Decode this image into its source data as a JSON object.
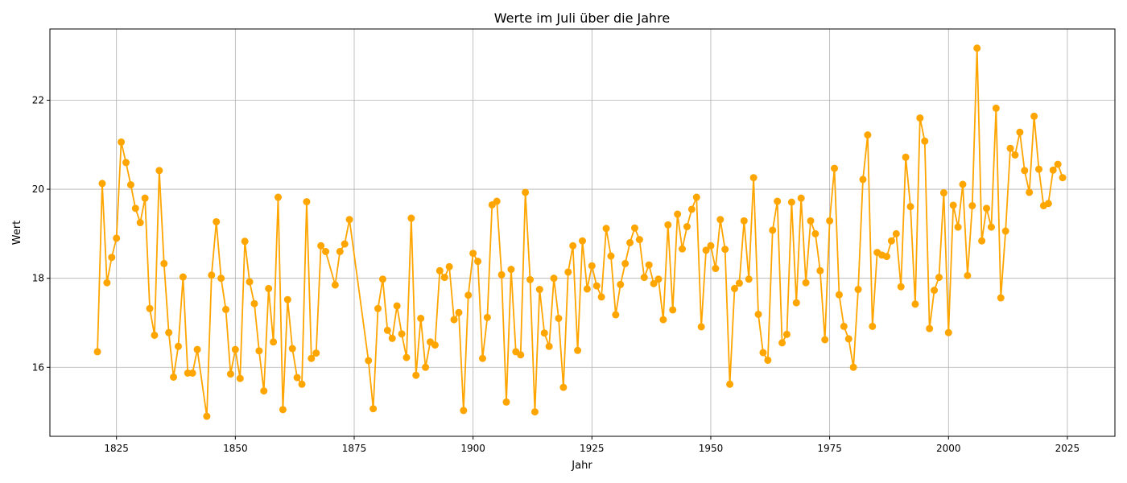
{
  "chart_data": {
    "type": "line",
    "title": "Werte im Juli über die Jahre",
    "xlabel": "Jahr",
    "ylabel": "Wert",
    "xlim": [
      1811,
      2035
    ],
    "ylim": [
      14.45,
      23.6
    ],
    "xticks": [
      1825,
      1850,
      1875,
      1900,
      1925,
      1950,
      1975,
      2000,
      2025
    ],
    "yticks": [
      16,
      18,
      20,
      22
    ],
    "grid": true,
    "color": "#FFA500",
    "series": [
      {
        "x": [
          1821,
          1822,
          1823,
          1824,
          1825,
          1826,
          1827,
          1828,
          1829,
          1830,
          1831,
          1832,
          1833,
          1834,
          1835,
          1836,
          1837,
          1838,
          1839,
          1840,
          1841,
          1842,
          1844,
          1845,
          1846,
          1847,
          1848,
          1849,
          1850,
          1851,
          1852,
          1853,
          1854,
          1855,
          1856,
          1857,
          1858,
          1859,
          1860,
          1861,
          1862,
          1863,
          1864,
          1865,
          1866,
          1867,
          1868,
          1869,
          1871,
          1872,
          1873,
          1874,
          1878,
          1879,
          1880,
          1881,
          1882,
          1883,
          1884,
          1885,
          1886,
          1887,
          1888,
          1889,
          1890,
          1891,
          1892,
          1893,
          1894,
          1895,
          1896,
          1897,
          1898,
          1899,
          1900,
          1901,
          1902,
          1903,
          1904,
          1905,
          1906,
          1907,
          1908,
          1909,
          1910,
          1911,
          1912,
          1913,
          1914,
          1915,
          1916,
          1917,
          1918,
          1919,
          1920,
          1921,
          1922,
          1923,
          1924,
          1925,
          1926,
          1927,
          1928,
          1929,
          1930,
          1931,
          1932,
          1933,
          1934,
          1935,
          1936,
          1937,
          1938,
          1939,
          1940,
          1941,
          1942,
          1943,
          1944,
          1945,
          1946,
          1947,
          1948,
          1949,
          1950,
          1951,
          1952,
          1953,
          1954,
          1955,
          1956,
          1957,
          1958,
          1959,
          1960,
          1961,
          1962,
          1963,
          1964,
          1965,
          1966,
          1967,
          1968,
          1969,
          1970,
          1971,
          1972,
          1973,
          1974,
          1975,
          1976,
          1977,
          1978,
          1979,
          1980,
          1981,
          1982,
          1983,
          1984,
          1985,
          1986,
          1987,
          1988,
          1989,
          1990,
          1991,
          1992,
          1993,
          1994,
          1995,
          1996,
          1997,
          1998,
          1999,
          2000,
          2001,
          2002,
          2003,
          2004,
          2005,
          2006,
          2007,
          2008,
          2009,
          2010,
          2011,
          2012,
          2013,
          2014,
          2015,
          2016,
          2017,
          2018,
          2019,
          2020,
          2021,
          2022,
          2023,
          2024
        ],
        "y": [
          16.35,
          20.13,
          17.9,
          18.47,
          18.9,
          21.06,
          20.6,
          20.1,
          19.57,
          19.25,
          19.8,
          17.32,
          16.72,
          20.42,
          18.33,
          16.78,
          15.78,
          16.47,
          18.03,
          15.87,
          15.87,
          16.4,
          14.9,
          18.07,
          19.27,
          18.0,
          17.3,
          15.85,
          16.4,
          15.75,
          18.83,
          17.92,
          17.43,
          16.37,
          15.47,
          17.77,
          16.57,
          19.82,
          15.05,
          17.52,
          16.42,
          15.77,
          15.62,
          19.72,
          16.2,
          16.32,
          18.73,
          18.6,
          17.85,
          18.6,
          18.77,
          19.32,
          16.15,
          15.07,
          17.32,
          17.98,
          16.83,
          16.65,
          17.38,
          16.75,
          16.22,
          19.35,
          15.82,
          17.1,
          16.0,
          16.57,
          16.5,
          18.17,
          18.02,
          18.26,
          17.07,
          17.23,
          15.03,
          17.62,
          18.56,
          18.38,
          16.2,
          17.12,
          19.65,
          19.73,
          18.08,
          15.22,
          18.2,
          16.35,
          16.28,
          19.93,
          17.97,
          15.0,
          17.75,
          16.77,
          16.47,
          18.0,
          17.1,
          15.55,
          18.14,
          18.73,
          16.38,
          18.84,
          17.76,
          18.28,
          17.83,
          17.58,
          19.12,
          18.5,
          17.18,
          17.86,
          18.33,
          18.8,
          19.13,
          18.87,
          18.02,
          18.3,
          17.88,
          17.98,
          17.07,
          19.2,
          17.29,
          19.44,
          18.66,
          19.16,
          19.55,
          19.82,
          16.91,
          18.63,
          18.73,
          18.22,
          19.32,
          18.65,
          15.62,
          17.77,
          17.89,
          19.29,
          17.98,
          20.26,
          17.19,
          16.33,
          16.16,
          19.08,
          19.73,
          16.55,
          16.74,
          19.71,
          17.45,
          19.8,
          17.9,
          19.29,
          19.0,
          18.17,
          16.62,
          19.29,
          20.47,
          17.63,
          16.92,
          16.64,
          16.0,
          17.75,
          20.22,
          21.22,
          16.92,
          18.58,
          18.52,
          18.49,
          18.84,
          19.0,
          17.81,
          20.72,
          19.61,
          17.42,
          21.6,
          21.08,
          16.87,
          17.73,
          18.02,
          19.92,
          16.78,
          19.64,
          19.15,
          20.11,
          18.06,
          19.63,
          23.17,
          18.84,
          19.57,
          19.15,
          21.82,
          17.56,
          19.06,
          20.92,
          20.77,
          21.28,
          20.42,
          19.93,
          21.64,
          20.45,
          19.63,
          19.68,
          20.43,
          20.56,
          20.26
        ]
      }
    ]
  }
}
